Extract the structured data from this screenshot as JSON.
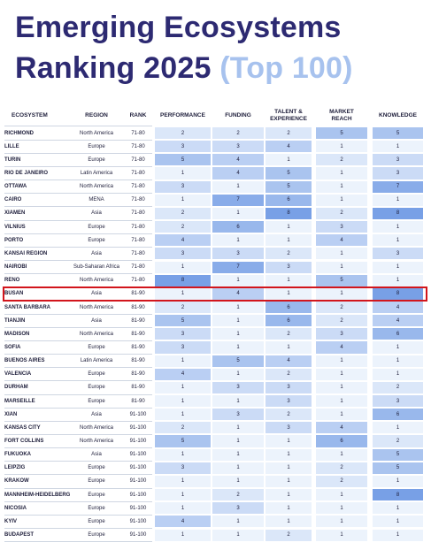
{
  "header": {
    "title": "Emerging Ecosystems Ranking 2025",
    "title_highlight": "(Top 100)"
  },
  "table": {
    "columns": {
      "ecosystem": "ECOSYSTEM",
      "region": "REGION",
      "rank": "RANK",
      "performance": "PERFORMANCE",
      "funding": "FUNDING",
      "talent": "TALENT & EXPERIENCE",
      "market": "MARKET REACH",
      "knowledge": "KNOWLEDGE"
    },
    "rows": [
      {
        "ecosystem": "RICHMOND",
        "region": "North America",
        "rank": "71-80",
        "performance": 2,
        "funding": 2,
        "talent": 2,
        "market": 5,
        "knowledge": 5
      },
      {
        "ecosystem": "LILLE",
        "region": "Europe",
        "rank": "71-80",
        "performance": 3,
        "funding": 3,
        "talent": 4,
        "market": 1,
        "knowledge": 1
      },
      {
        "ecosystem": "TURIN",
        "region": "Europe",
        "rank": "71-80",
        "performance": 5,
        "funding": 4,
        "talent": 1,
        "market": 2,
        "knowledge": 3
      },
      {
        "ecosystem": "RIO DE JANEIRO",
        "region": "Latin America",
        "rank": "71-80",
        "performance": 1,
        "funding": 4,
        "talent": 5,
        "market": 1,
        "knowledge": 3
      },
      {
        "ecosystem": "OTTAWA",
        "region": "North America",
        "rank": "71-80",
        "performance": 3,
        "funding": 1,
        "talent": 5,
        "market": 1,
        "knowledge": 7
      },
      {
        "ecosystem": "CAIRO",
        "region": "MENA",
        "rank": "71-80",
        "performance": 1,
        "funding": 7,
        "talent": 6,
        "market": 1,
        "knowledge": 1
      },
      {
        "ecosystem": "XIAMEN",
        "region": "Asia",
        "rank": "71-80",
        "performance": 2,
        "funding": 1,
        "talent": 8,
        "market": 2,
        "knowledge": 8
      },
      {
        "ecosystem": "VILNIUS",
        "region": "Europe",
        "rank": "71-80",
        "performance": 2,
        "funding": 6,
        "talent": 1,
        "market": 3,
        "knowledge": 1
      },
      {
        "ecosystem": "PORTO",
        "region": "Europe",
        "rank": "71-80",
        "performance": 4,
        "funding": 1,
        "talent": 1,
        "market": 4,
        "knowledge": 1
      },
      {
        "ecosystem": "KANSAI REGION",
        "region": "Asia",
        "rank": "71-80",
        "performance": 3,
        "funding": 3,
        "talent": 2,
        "market": 1,
        "knowledge": 3
      },
      {
        "ecosystem": "NAIROBI",
        "region": "Sub-Saharan Africa",
        "rank": "71-80",
        "performance": 1,
        "funding": 7,
        "talent": 3,
        "market": 1,
        "knowledge": 1
      },
      {
        "ecosystem": "RENO",
        "region": "North America",
        "rank": "71-80",
        "performance": 8,
        "funding": 1,
        "talent": 1,
        "market": 5,
        "knowledge": 1
      },
      {
        "ecosystem": "BUSAN",
        "region": "Asia",
        "rank": "81-90",
        "performance": 1,
        "funding": 4,
        "talent": 1,
        "market": 1,
        "knowledge": 8,
        "highlight": true
      },
      {
        "ecosystem": "SANTA BARBARA",
        "region": "North America",
        "rank": "81-90",
        "performance": 2,
        "funding": 1,
        "talent": 6,
        "market": 2,
        "knowledge": 4
      },
      {
        "ecosystem": "TIANJIN",
        "region": "Asia",
        "rank": "81-90",
        "performance": 5,
        "funding": 1,
        "talent": 6,
        "market": 2,
        "knowledge": 4
      },
      {
        "ecosystem": "MADISON",
        "region": "North America",
        "rank": "81-90",
        "performance": 3,
        "funding": 1,
        "talent": 2,
        "market": 3,
        "knowledge": 6
      },
      {
        "ecosystem": "SOFIA",
        "region": "Europe",
        "rank": "81-90",
        "performance": 3,
        "funding": 1,
        "talent": 1,
        "market": 4,
        "knowledge": 1
      },
      {
        "ecosystem": "BUENOS AIRES",
        "region": "Latin America",
        "rank": "81-90",
        "performance": 1,
        "funding": 5,
        "talent": 4,
        "market": 1,
        "knowledge": 1
      },
      {
        "ecosystem": "VALENCIA",
        "region": "Europe",
        "rank": "81-90",
        "performance": 4,
        "funding": 1,
        "talent": 2,
        "market": 1,
        "knowledge": 1
      },
      {
        "ecosystem": "DURHAM",
        "region": "Europe",
        "rank": "81-90",
        "performance": 1,
        "funding": 3,
        "talent": 3,
        "market": 1,
        "knowledge": 2
      },
      {
        "ecosystem": "MARSEILLE",
        "region": "Europe",
        "rank": "81-90",
        "performance": 1,
        "funding": 1,
        "talent": 3,
        "market": 1,
        "knowledge": 3
      },
      {
        "ecosystem": "XIAN",
        "region": "Asia",
        "rank": "91-100",
        "performance": 1,
        "funding": 3,
        "talent": 2,
        "market": 1,
        "knowledge": 6
      },
      {
        "ecosystem": "KANSAS CITY",
        "region": "North America",
        "rank": "91-100",
        "performance": 2,
        "funding": 1,
        "talent": 3,
        "market": 4,
        "knowledge": 1
      },
      {
        "ecosystem": "FORT COLLINS",
        "region": "North America",
        "rank": "91-100",
        "performance": 5,
        "funding": 1,
        "talent": 1,
        "market": 6,
        "knowledge": 2
      },
      {
        "ecosystem": "FUKUOKA",
        "region": "Asia",
        "rank": "91-100",
        "performance": 1,
        "funding": 1,
        "talent": 1,
        "market": 1,
        "knowledge": 5
      },
      {
        "ecosystem": "LEIPZIG",
        "region": "Europe",
        "rank": "91-100",
        "performance": 3,
        "funding": 1,
        "talent": 1,
        "market": 2,
        "knowledge": 5
      },
      {
        "ecosystem": "KRAKOW",
        "region": "Europe",
        "rank": "91-100",
        "performance": 1,
        "funding": 1,
        "talent": 1,
        "market": 2,
        "knowledge": 1
      },
      {
        "ecosystem": "MANNHEIM-HEIDELBERG",
        "region": "Europe",
        "rank": "91-100",
        "performance": 1,
        "funding": 2,
        "talent": 1,
        "market": 1,
        "knowledge": 8
      },
      {
        "ecosystem": "NICOSIA",
        "region": "Europe",
        "rank": "91-100",
        "performance": 1,
        "funding": 3,
        "talent": 1,
        "market": 1,
        "knowledge": 1
      },
      {
        "ecosystem": "KYIV",
        "region": "Europe",
        "rank": "91-100",
        "performance": 4,
        "funding": 1,
        "talent": 1,
        "market": 1,
        "knowledge": 1
      },
      {
        "ecosystem": "BUDAPEST",
        "region": "Europe",
        "rank": "91-100",
        "performance": 1,
        "funding": 1,
        "talent": 2,
        "market": 1,
        "knowledge": 1
      }
    ]
  }
}
